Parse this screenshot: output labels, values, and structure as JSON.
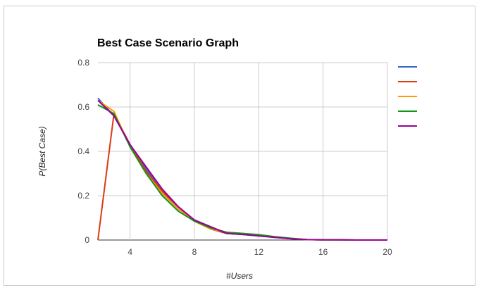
{
  "chart_data": {
    "type": "line",
    "title": "Best Case Scenario Graph",
    "xlabel": "#Users",
    "ylabel": "P(Best Case)",
    "xlim": [
      2,
      20
    ],
    "ylim": [
      0,
      0.8
    ],
    "x_ticks": [
      4,
      8,
      12,
      16,
      20
    ],
    "y_ticks": [
      0,
      0.2,
      0.4,
      0.6,
      0.8
    ],
    "grid": true,
    "legend_position": "right",
    "x": [
      2,
      3,
      4,
      5,
      6,
      7,
      8,
      9,
      10,
      11,
      12,
      13,
      14,
      15,
      16,
      17,
      18,
      19,
      20
    ],
    "series": [
      {
        "color": "#3366cc",
        "values": [
          0.64,
          0.56,
          0.43,
          0.32,
          0.22,
          0.14,
          0.09,
          0.06,
          0.03,
          0.025,
          0.02,
          0.012,
          0.006,
          0.002,
          0.001,
          0.001,
          0,
          0,
          0
        ]
      },
      {
        "color": "#dc3912",
        "values": [
          0.0,
          0.57,
          0.43,
          0.31,
          0.22,
          0.15,
          0.09,
          0.05,
          0.03,
          0.025,
          0.02,
          0.012,
          0.006,
          0.002,
          0.001,
          0.001,
          0,
          0,
          0
        ]
      },
      {
        "color": "#ff9900",
        "values": [
          0.63,
          0.58,
          0.42,
          0.3,
          0.21,
          0.14,
          0.085,
          0.05,
          0.035,
          0.03,
          0.022,
          0.014,
          0.007,
          0.002,
          0.001,
          0.001,
          0,
          0,
          0
        ]
      },
      {
        "color": "#109618",
        "values": [
          0.61,
          0.57,
          0.42,
          0.3,
          0.2,
          0.13,
          0.085,
          0.055,
          0.035,
          0.03,
          0.024,
          0.015,
          0.008,
          0.002,
          0.001,
          0.001,
          0,
          0,
          0
        ]
      },
      {
        "color": "#990099",
        "values": [
          0.63,
          0.56,
          0.43,
          0.33,
          0.23,
          0.15,
          0.09,
          0.06,
          0.03,
          0.025,
          0.018,
          0.012,
          0.006,
          0.002,
          0.001,
          0.001,
          0,
          0,
          0
        ]
      }
    ]
  }
}
